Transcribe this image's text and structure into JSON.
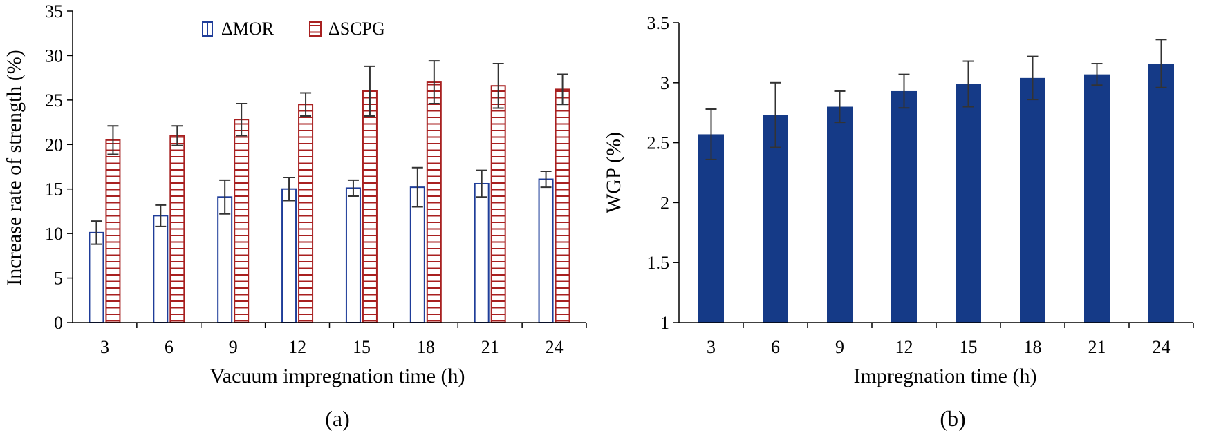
{
  "chart_data": [
    {
      "type": "bar",
      "panel_label": "(a)",
      "title": "",
      "xlabel": "Vacuum impregnation time (h)",
      "ylabel": "Increase rate of strength (%)",
      "categories": [
        "3",
        "6",
        "9",
        "12",
        "15",
        "18",
        "21",
        "24"
      ],
      "ylim": [
        0,
        35
      ],
      "yticks": [
        "0",
        "5",
        "10",
        "15",
        "20",
        "25",
        "30",
        "35"
      ],
      "grid": false,
      "legend": "top-center",
      "series": [
        {
          "name": "ΔMOR",
          "color": "#1f3d99",
          "fill": "outline",
          "values": [
            10.1,
            12.0,
            14.1,
            15.0,
            15.1,
            15.2,
            15.6,
            16.1
          ],
          "errors": [
            1.3,
            1.2,
            1.9,
            1.3,
            0.9,
            2.2,
            1.5,
            0.9
          ]
        },
        {
          "name": "ΔSCPG",
          "color": "#a82020",
          "fill": "horizontal-hatch",
          "values": [
            20.5,
            21.0,
            22.8,
            24.5,
            26.0,
            27.0,
            26.6,
            26.2
          ],
          "errors": [
            1.6,
            1.1,
            1.8,
            1.3,
            2.8,
            2.4,
            2.5,
            1.7
          ]
        }
      ]
    },
    {
      "type": "bar",
      "panel_label": "(b)",
      "title": "",
      "xlabel": "Impregnation time (h)",
      "ylabel": "WGP (%)",
      "categories": [
        "3",
        "6",
        "9",
        "12",
        "15",
        "18",
        "21",
        "24"
      ],
      "ylim": [
        1,
        3.5
      ],
      "yticks": [
        "1",
        "1.5",
        "2",
        "2.5",
        "3",
        "3.5"
      ],
      "grid": false,
      "legend": "none",
      "series": [
        {
          "name": "WGP",
          "color": "#153a87",
          "fill": "solid",
          "values": [
            2.57,
            2.73,
            2.8,
            2.93,
            2.99,
            3.04,
            3.07,
            3.16
          ],
          "errors": [
            0.21,
            0.27,
            0.13,
            0.14,
            0.19,
            0.18,
            0.09,
            0.2
          ]
        }
      ]
    }
  ]
}
